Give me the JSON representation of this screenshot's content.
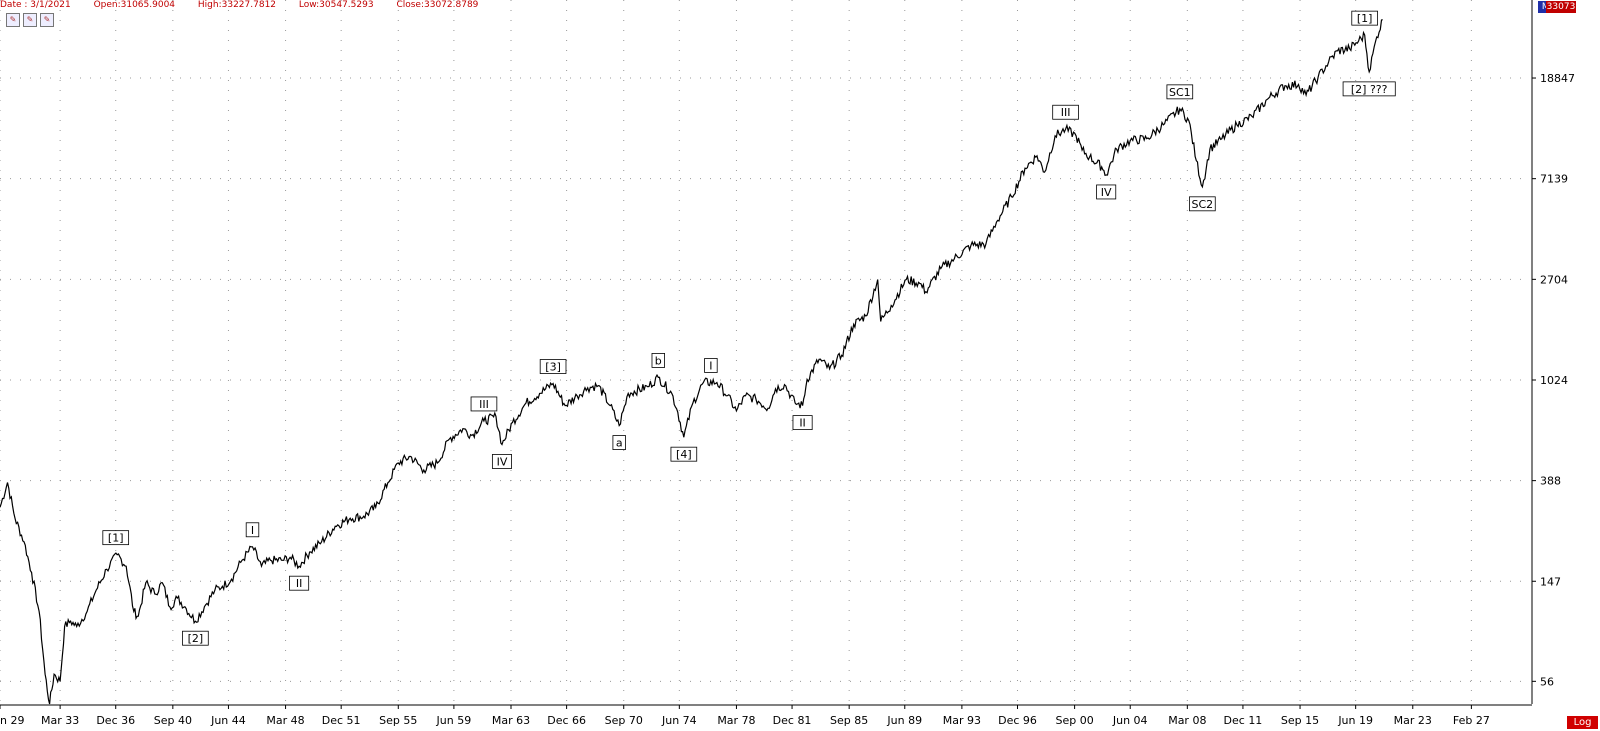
{
  "header": {
    "date": "Date : 3/1/2021",
    "open": "Open:31065.9004",
    "high": "High:33227.7812",
    "low": "Low:30547.5293",
    "close": "Close:33072.8789"
  },
  "toolbar": {
    "icons": [
      "chart-tool-icon",
      "chart-tool-icon",
      "chart-tool-icon"
    ]
  },
  "tags": {
    "mode": "Mo",
    "last_price": "33073",
    "scale": "Log"
  },
  "colors": {
    "price_line": "#000000",
    "grid": "#9a9a9a",
    "header_text": "#c00000",
    "mode_bg": "#1f2fa8",
    "price_bg": "#c00000"
  },
  "chart_data": {
    "type": "line",
    "y_scale": "log",
    "grid": true,
    "ylim": [
      45,
      40000
    ],
    "x_range": [
      1929.2,
      2031.0
    ],
    "x_ticks": [
      "n 29",
      "Mar 33",
      "Dec 36",
      "Sep 40",
      "Jun 44",
      "Mar 48",
      "Dec 51",
      "Sep 55",
      "Jun 59",
      "Mar 63",
      "Dec 66",
      "Sep 70",
      "Jun 74",
      "Mar 78",
      "Dec 81",
      "Sep 85",
      "Jun 89",
      "Mar 93",
      "Dec 96",
      "Sep 00",
      "Jun 04",
      "Mar 08",
      "Dec 11",
      "Sep 15",
      "Jun 19",
      "Mar 23",
      "Feb 27"
    ],
    "x_tick_years": [
      1929.2,
      1933.2,
      1936.9,
      1940.7,
      1944.4,
      1948.2,
      1951.9,
      1955.7,
      1959.4,
      1963.2,
      1966.9,
      1970.7,
      1974.4,
      1978.2,
      1981.9,
      1985.7,
      1989.4,
      1993.2,
      1996.9,
      2000.7,
      2004.4,
      2008.2,
      2011.9,
      2015.7,
      2019.4,
      2023.2,
      2027.1
    ],
    "y_ticks": [
      56,
      147,
      388,
      1024,
      2704,
      7139,
      18847
    ],
    "series": [
      {
        "values": [
          [
            1929.2,
            300
          ],
          [
            1929.7,
            381
          ],
          [
            1930.2,
            270
          ],
          [
            1930.8,
            215
          ],
          [
            1931.3,
            160
          ],
          [
            1931.8,
            110
          ],
          [
            1932.2,
            60
          ],
          [
            1932.5,
            45
          ],
          [
            1932.8,
            60
          ],
          [
            1933.2,
            56
          ],
          [
            1933.5,
            95
          ],
          [
            1933.9,
            100
          ],
          [
            1934.3,
            95
          ],
          [
            1935.0,
            110
          ],
          [
            1935.6,
            135
          ],
          [
            1936.3,
            165
          ],
          [
            1937.0,
            190
          ],
          [
            1937.6,
            170
          ],
          [
            1938.1,
            110
          ],
          [
            1938.4,
            105
          ],
          [
            1938.9,
            145
          ],
          [
            1939.5,
            130
          ],
          [
            1940.0,
            145
          ],
          [
            1940.5,
            115
          ],
          [
            1941.0,
            125
          ],
          [
            1941.5,
            115
          ],
          [
            1942.2,
            100
          ],
          [
            1942.8,
            115
          ],
          [
            1943.5,
            135
          ],
          [
            1944.0,
            140
          ],
          [
            1944.6,
            150
          ],
          [
            1945.3,
            180
          ],
          [
            1946.0,
            205
          ],
          [
            1946.6,
            170
          ],
          [
            1947.2,
            180
          ],
          [
            1948.0,
            180
          ],
          [
            1948.5,
            185
          ],
          [
            1949.1,
            170
          ],
          [
            1949.8,
            195
          ],
          [
            1950.6,
            215
          ],
          [
            1951.5,
            250
          ],
          [
            1952.5,
            270
          ],
          [
            1953.4,
            275
          ],
          [
            1954.2,
            300
          ],
          [
            1955.0,
            380
          ],
          [
            1955.7,
            460
          ],
          [
            1956.5,
            490
          ],
          [
            1957.4,
            430
          ],
          [
            1958.3,
            460
          ],
          [
            1959.1,
            580
          ],
          [
            1960.0,
            640
          ],
          [
            1960.6,
            600
          ],
          [
            1961.4,
            690
          ],
          [
            1962.2,
            720
          ],
          [
            1962.6,
            550
          ],
          [
            1963.3,
            680
          ],
          [
            1964.2,
            820
          ],
          [
            1965.1,
            900
          ],
          [
            1966.0,
            990
          ],
          [
            1966.8,
            800
          ],
          [
            1967.6,
            880
          ],
          [
            1968.3,
            950
          ],
          [
            1969.0,
            970
          ],
          [
            1969.8,
            800
          ],
          [
            1970.4,
            660
          ],
          [
            1971.0,
            900
          ],
          [
            1972.3,
            960
          ],
          [
            1973.0,
            1050
          ],
          [
            1973.9,
            900
          ],
          [
            1974.3,
            750
          ],
          [
            1974.7,
            590
          ],
          [
            1975.3,
            820
          ],
          [
            1976.0,
            1000
          ],
          [
            1976.9,
            1000
          ],
          [
            1977.6,
            880
          ],
          [
            1978.2,
            760
          ],
          [
            1978.8,
            880
          ],
          [
            1979.5,
            850
          ],
          [
            1980.3,
            780
          ],
          [
            1980.8,
            940
          ],
          [
            1981.4,
            980
          ],
          [
            1982.1,
            820
          ],
          [
            1982.6,
            800
          ],
          [
            1982.9,
            1030
          ],
          [
            1983.7,
            1250
          ],
          [
            1984.4,
            1140
          ],
          [
            1985.2,
            1300
          ],
          [
            1986.0,
            1750
          ],
          [
            1986.8,
            1900
          ],
          [
            1987.6,
            2700
          ],
          [
            1987.8,
            1800
          ],
          [
            1988.5,
            2100
          ],
          [
            1989.5,
            2700
          ],
          [
            1990.4,
            2600
          ],
          [
            1990.8,
            2400
          ],
          [
            1991.8,
            3000
          ],
          [
            1992.7,
            3300
          ],
          [
            1993.8,
            3750
          ],
          [
            1994.8,
            3800
          ],
          [
            1995.5,
            4700
          ],
          [
            1996.5,
            6000
          ],
          [
            1997.4,
            7900
          ],
          [
            1998.2,
            8900
          ],
          [
            1998.7,
            7600
          ],
          [
            1999.4,
            10800
          ],
          [
            2000.1,
            11500
          ],
          [
            2000.8,
            10800
          ],
          [
            2001.2,
            9400
          ],
          [
            2001.7,
            8800
          ],
          [
            2002.5,
            8000
          ],
          [
            2002.8,
            7400
          ],
          [
            2003.5,
            9500
          ],
          [
            2004.4,
            10300
          ],
          [
            2005.5,
            10500
          ],
          [
            2006.6,
            12000
          ],
          [
            2007.7,
            14000
          ],
          [
            2008.3,
            12500
          ],
          [
            2008.8,
            8500
          ],
          [
            2009.2,
            6600
          ],
          [
            2009.7,
            9500
          ],
          [
            2010.5,
            10500
          ],
          [
            2011.5,
            12000
          ],
          [
            2012.5,
            13000
          ],
          [
            2013.6,
            15500
          ],
          [
            2014.7,
            17500
          ],
          [
            2015.6,
            17700
          ],
          [
            2016.1,
            16000
          ],
          [
            2016.9,
            19000
          ],
          [
            2017.6,
            22000
          ],
          [
            2018.2,
            24500
          ],
          [
            2019.0,
            25000
          ],
          [
            2019.6,
            27000
          ],
          [
            2020.0,
            28500
          ],
          [
            2020.3,
            20000
          ],
          [
            2020.8,
            28000
          ],
          [
            2021.2,
            33073
          ]
        ]
      }
    ],
    "annotations": [
      {
        "label": "[1]",
        "x": 1936.9,
        "y": 190,
        "pos": "above"
      },
      {
        "label": "[2]",
        "x": 1942.2,
        "y": 100,
        "pos": "below"
      },
      {
        "label": "I",
        "x": 1946.0,
        "y": 205,
        "pos": "above"
      },
      {
        "label": "II",
        "x": 1949.1,
        "y": 170,
        "pos": "below"
      },
      {
        "label": "III",
        "x": 1961.4,
        "y": 690,
        "pos": "above"
      },
      {
        "label": "IV",
        "x": 1962.6,
        "y": 550,
        "pos": "below"
      },
      {
        "label": "[3]",
        "x": 1966.0,
        "y": 990,
        "pos": "above"
      },
      {
        "label": "a",
        "x": 1970.4,
        "y": 660,
        "pos": "below"
      },
      {
        "label": "b",
        "x": 1973.0,
        "y": 1050,
        "pos": "above"
      },
      {
        "label": "[4]",
        "x": 1974.7,
        "y": 590,
        "pos": "below"
      },
      {
        "label": "I",
        "x": 1976.5,
        "y": 1000,
        "pos": "above"
      },
      {
        "label": "II",
        "x": 1982.6,
        "y": 800,
        "pos": "below"
      },
      {
        "label": "III",
        "x": 2000.1,
        "y": 11500,
        "pos": "above"
      },
      {
        "label": "IV",
        "x": 2002.8,
        "y": 7400,
        "pos": "below"
      },
      {
        "label": "SC1",
        "x": 2007.7,
        "y": 14000,
        "pos": "above"
      },
      {
        "label": "SC2",
        "x": 2009.2,
        "y": 6600,
        "pos": "below"
      },
      {
        "label": "[1]",
        "x": 2020.0,
        "y": 28500,
        "pos": "above"
      },
      {
        "label": "[2] ???",
        "x": 2020.3,
        "y": 20000,
        "pos": "below"
      }
    ]
  }
}
